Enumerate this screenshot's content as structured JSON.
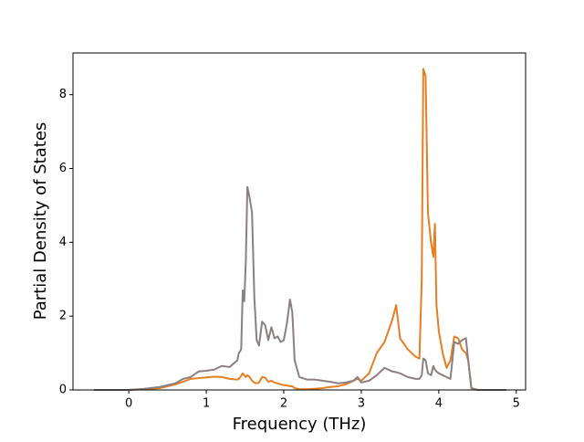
{
  "chart_data": {
    "type": "line",
    "xlabel": "Frequency (THz)",
    "ylabel": "Partial Density of States",
    "x": [
      -0.45,
      0,
      0.2,
      0.4,
      0.6,
      0.7,
      0.8,
      0.9,
      1.0,
      1.1,
      1.2,
      1.3,
      1.4,
      1.42,
      1.45,
      1.47,
      1.49,
      1.51,
      1.53,
      1.56,
      1.59,
      1.62,
      1.65,
      1.68,
      1.72,
      1.76,
      1.8,
      1.84,
      1.88,
      1.92,
      1.96,
      2.0,
      2.04,
      2.08,
      2.11,
      2.14,
      2.2,
      2.3,
      2.4,
      2.5,
      2.6,
      2.7,
      2.8,
      2.9,
      2.95,
      3.0,
      3.1,
      3.2,
      3.3,
      3.4,
      3.45,
      3.5,
      3.6,
      3.7,
      3.75,
      3.78,
      3.8,
      3.83,
      3.86,
      3.9,
      3.93,
      3.95,
      3.97,
      4.0,
      4.05,
      4.1,
      4.15,
      4.2,
      4.25,
      4.3,
      4.35,
      4.38,
      4.42,
      4.5,
      4.87
    ],
    "series": [
      {
        "color": "#e67e22",
        "values": [
          0,
          0,
          0.02,
          0.05,
          0.15,
          0.22,
          0.3,
          0.32,
          0.34,
          0.36,
          0.35,
          0.3,
          0.28,
          0.3,
          0.38,
          0.45,
          0.4,
          0.35,
          0.4,
          0.35,
          0.25,
          0.2,
          0.18,
          0.2,
          0.35,
          0.33,
          0.22,
          0.25,
          0.2,
          0.18,
          0.15,
          0.13,
          0.12,
          0.1,
          0.1,
          0.05,
          0.02,
          0.02,
          0.03,
          0.05,
          0.08,
          0.1,
          0.15,
          0.25,
          0.3,
          0.25,
          0.45,
          1.0,
          1.3,
          1.9,
          2.3,
          1.4,
          1.1,
          0.9,
          0.85,
          3.0,
          8.7,
          8.5,
          4.8,
          4.0,
          3.6,
          4.5,
          2.3,
          1.6,
          1.0,
          0.6,
          0.8,
          1.45,
          1.4,
          1.1,
          1.0,
          0.8,
          0.05,
          0,
          0
        ]
      },
      {
        "color": "#8c7f80",
        "values": [
          0,
          0,
          0.03,
          0.08,
          0.18,
          0.3,
          0.35,
          0.5,
          0.52,
          0.55,
          0.65,
          0.62,
          0.8,
          1.0,
          1.1,
          2.7,
          2.4,
          3.5,
          5.5,
          5.2,
          4.8,
          2.5,
          1.35,
          1.2,
          1.85,
          1.75,
          1.35,
          1.7,
          1.4,
          1.45,
          1.3,
          1.35,
          1.8,
          2.45,
          2.1,
          0.8,
          0.35,
          0.28,
          0.28,
          0.25,
          0.22,
          0.18,
          0.2,
          0.25,
          0.35,
          0.2,
          0.25,
          0.4,
          0.6,
          0.5,
          0.48,
          0.45,
          0.35,
          0.3,
          0.3,
          0.4,
          0.85,
          0.8,
          0.45,
          0.4,
          0.65,
          0.55,
          0.5,
          0.45,
          0.4,
          0.35,
          0.3,
          1.3,
          1.25,
          1.35,
          1.4,
          0.8,
          0.05,
          0,
          0
        ]
      }
    ],
    "xlim": [
      -0.72,
      5.12
    ],
    "xticks": [
      0,
      1,
      2,
      3,
      4,
      5
    ],
    "ylim": [
      0,
      9.13
    ],
    "yticks": [
      0,
      2,
      4,
      6,
      8
    ]
  }
}
